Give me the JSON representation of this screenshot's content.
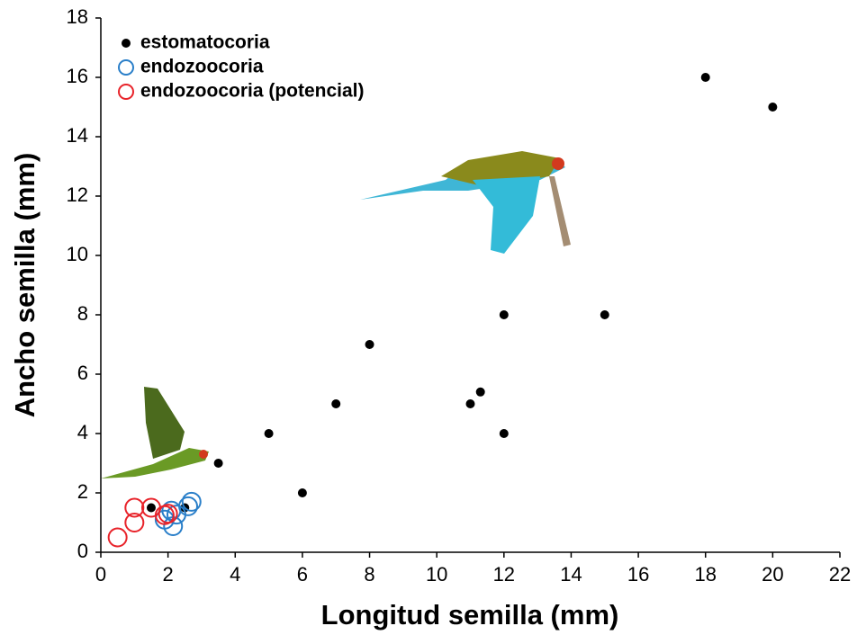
{
  "chart_data": {
    "type": "scatter",
    "x_label": "Longitud semilla (mm)",
    "y_label": "Ancho semilla (mm)",
    "xlim": [
      0,
      22
    ],
    "xticks": [
      0,
      2,
      4,
      6,
      8,
      10,
      12,
      14,
      16,
      18,
      20,
      22
    ],
    "ylim": [
      0,
      18
    ],
    "yticks": [
      0,
      2,
      4,
      6,
      8,
      10,
      12,
      14,
      16,
      18
    ],
    "grid": false,
    "legend": "upper left",
    "series": [
      {
        "name": "estomatocoria",
        "color": "#000000",
        "marker": "filled",
        "x": [
          1.5,
          2.5,
          3.5,
          5,
          6,
          7,
          8,
          11,
          11.3,
          12,
          12,
          15,
          18,
          20
        ],
        "values": [
          1.5,
          1.5,
          3,
          4,
          2,
          5,
          7,
          5,
          5.4,
          8,
          4,
          8,
          16,
          15
        ]
      },
      {
        "name": "endozoocoria",
        "color": "#2a7fc9",
        "marker": "open",
        "x": [
          1.9,
          2.15,
          2.6,
          2.7,
          2.1,
          2.25
        ],
        "values": [
          1.1,
          0.88,
          1.55,
          1.7,
          1.4,
          1.27
        ]
      },
      {
        "name": "endozoocoria (potencial)",
        "color": "#e8232a",
        "marker": "open",
        "x": [
          0.5,
          1.0,
          1.0,
          1.5,
          1.9,
          2.0
        ],
        "values": [
          0.5,
          1.0,
          1.5,
          1.5,
          1.25,
          1.3
        ]
      }
    ]
  }
}
